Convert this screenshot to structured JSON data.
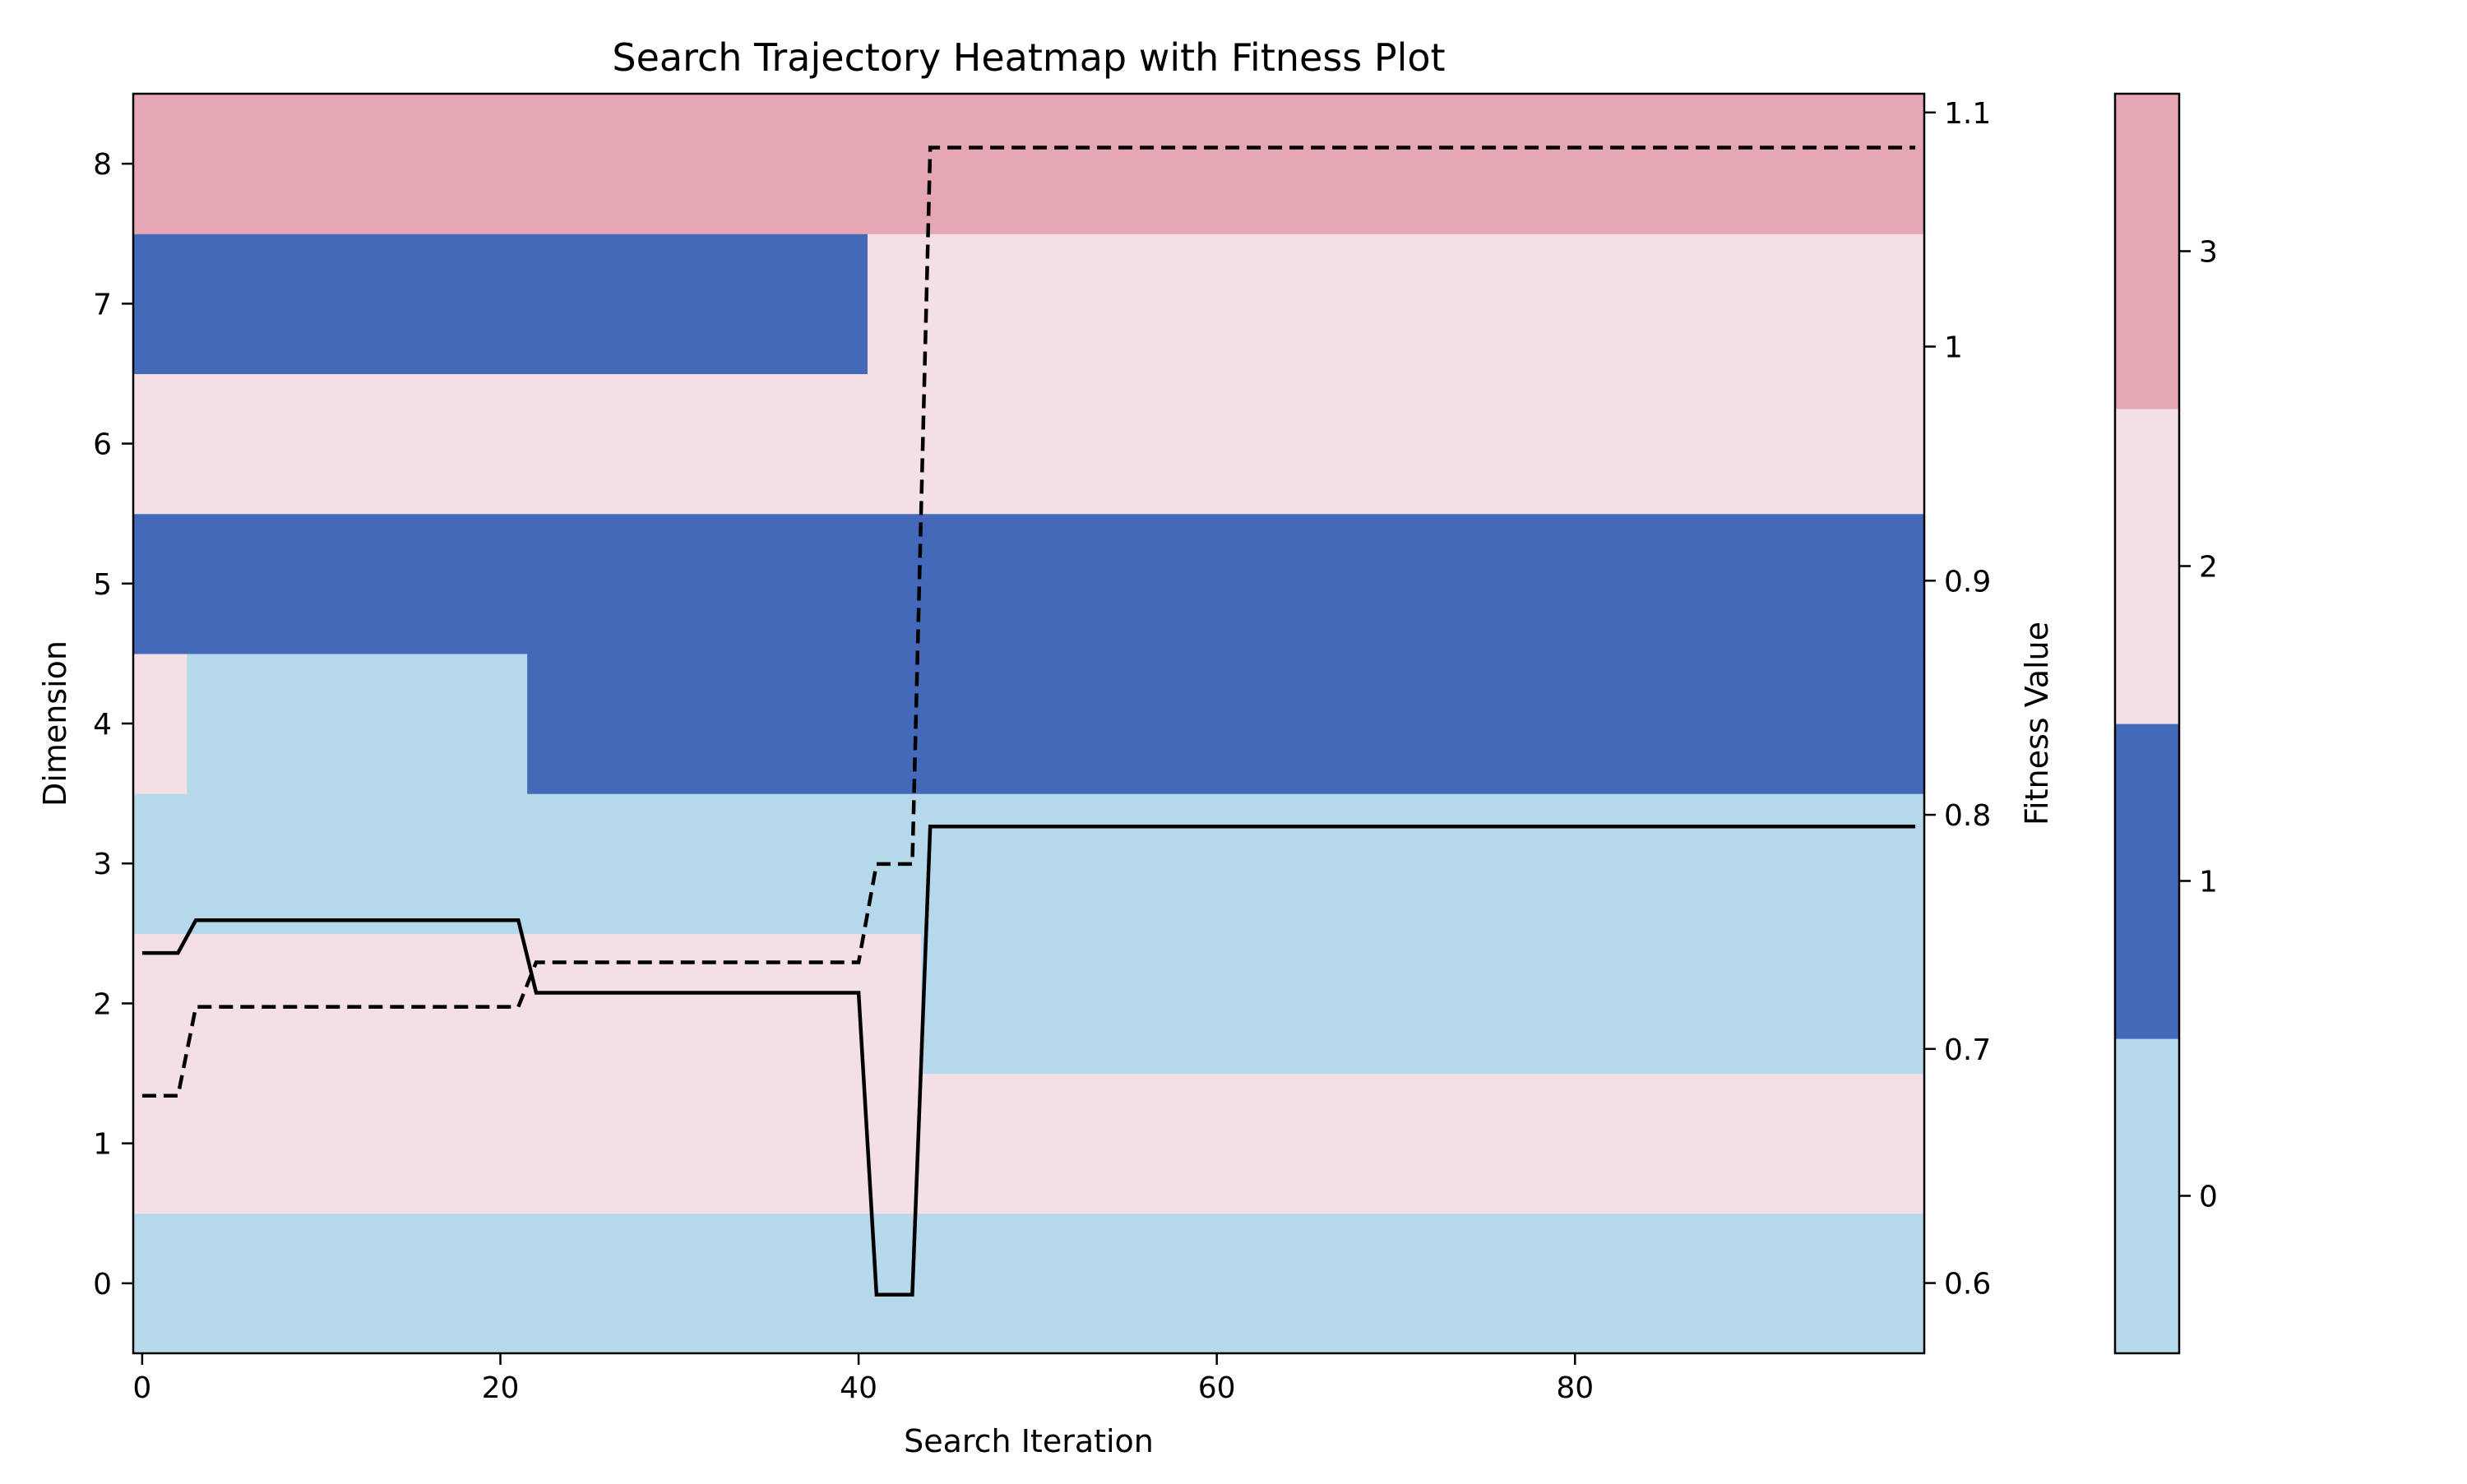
{
  "chart_data": {
    "type": "heatmap",
    "title": "Search Trajectory Heatmap with Fitness Plot",
    "xlabel": "Search Iteration",
    "ylabel": "Dimension",
    "y2label": "Fitness Value",
    "xlim": [
      -0.5,
      99.5
    ],
    "ylim": [
      -0.5,
      8.5
    ],
    "y2lim": [
      0.57,
      1.108
    ],
    "x_ticks": [
      0,
      20,
      40,
      60,
      80
    ],
    "y_ticks": [
      0,
      1,
      2,
      3,
      4,
      5,
      6,
      7,
      8
    ],
    "y2_ticks": [
      0.6,
      0.7,
      0.8,
      0.9,
      1.0,
      1.1
    ],
    "colormap": [
      "#b5d8eb",
      "#4569b9",
      "#f5dfe6",
      "#e6a7b5"
    ],
    "colorbar": {
      "ticks": [
        0,
        1,
        2,
        3
      ],
      "range": [
        -0.5,
        3.5
      ]
    },
    "heatmap_cells": [
      {
        "dimension": 0,
        "segments": [
          {
            "from": 0,
            "to": 99,
            "value": 0
          }
        ]
      },
      {
        "dimension": 1,
        "segments": [
          {
            "from": 0,
            "to": 99,
            "value": 2
          }
        ]
      },
      {
        "dimension": 2,
        "segments": [
          {
            "from": 0,
            "to": 43,
            "value": 2
          },
          {
            "from": 44,
            "to": 99,
            "value": 0
          }
        ]
      },
      {
        "dimension": 3,
        "segments": [
          {
            "from": 0,
            "to": 99,
            "value": 0
          }
        ]
      },
      {
        "dimension": 4,
        "segments": [
          {
            "from": 0,
            "to": 2,
            "value": 2
          },
          {
            "from": 3,
            "to": 21,
            "value": 0
          },
          {
            "from": 22,
            "to": 99,
            "value": 1
          }
        ]
      },
      {
        "dimension": 5,
        "segments": [
          {
            "from": 0,
            "to": 99,
            "value": 1
          }
        ]
      },
      {
        "dimension": 6,
        "segments": [
          {
            "from": 0,
            "to": 99,
            "value": 2
          }
        ]
      },
      {
        "dimension": 7,
        "segments": [
          {
            "from": 0,
            "to": 40,
            "value": 1
          },
          {
            "from": 41,
            "to": 99,
            "value": 2
          }
        ]
      },
      {
        "dimension": 8,
        "segments": [
          {
            "from": 0,
            "to": 99,
            "value": 3
          }
        ]
      }
    ],
    "series": [
      {
        "style": "solid",
        "points": [
          [
            0,
            0.741
          ],
          [
            2,
            0.741
          ],
          [
            3,
            0.755
          ],
          [
            21,
            0.755
          ],
          [
            22,
            0.724
          ],
          [
            40,
            0.724
          ],
          [
            41,
            0.595
          ],
          [
            43,
            0.595
          ],
          [
            44,
            0.795
          ],
          [
            99,
            0.795
          ]
        ]
      },
      {
        "style": "dashed",
        "points": [
          [
            0,
            0.68
          ],
          [
            2,
            0.68
          ],
          [
            3,
            0.718
          ],
          [
            21,
            0.718
          ],
          [
            22,
            0.737
          ],
          [
            40,
            0.737
          ],
          [
            41,
            0.779
          ],
          [
            43,
            0.779
          ],
          [
            44,
            1.085
          ],
          [
            99,
            1.085
          ]
        ]
      }
    ]
  }
}
